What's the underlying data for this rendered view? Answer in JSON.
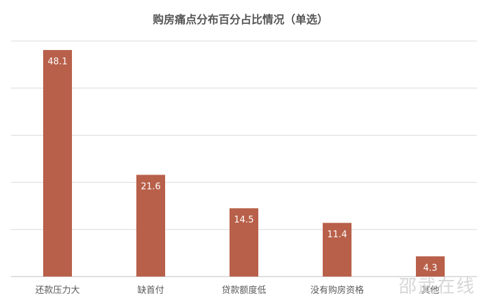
{
  "chart_data": {
    "type": "bar",
    "title": "购房痛点分布百分占比情况（单选）",
    "categories": [
      "还款压力大",
      "缺首付",
      "贷款额度低",
      "没有购房资格",
      "其他"
    ],
    "values": [
      48.1,
      21.6,
      14.5,
      11.4,
      4.3
    ],
    "ylim": [
      0,
      50
    ],
    "grid": true,
    "bar_color": "#b8604a",
    "label_color": "#ffffff",
    "grid_color": "#d9d9d9"
  },
  "watermark": "邵武在线"
}
